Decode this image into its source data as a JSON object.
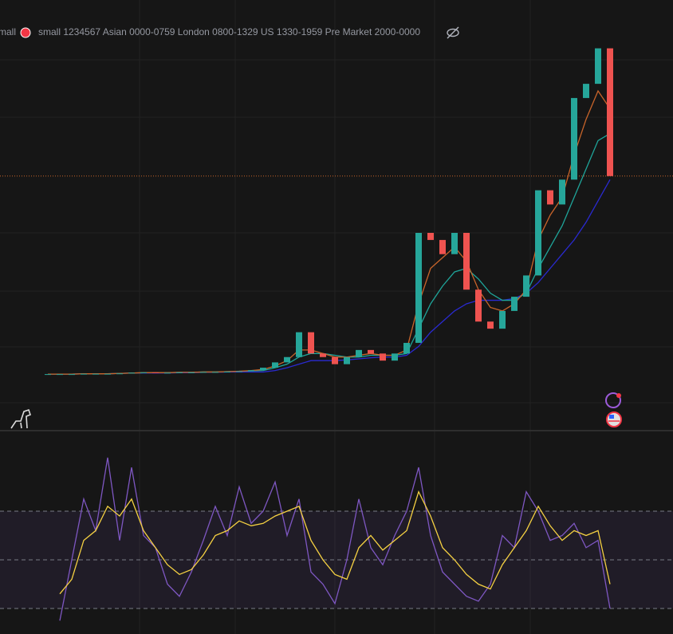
{
  "header": {
    "prefix": "mall",
    "legend": "small 1234567 Asian 0000-0759 London 0800-1329 US 1330-1959 Pre Market 2000-0000"
  },
  "chart_data": [
    {
      "type": "candle-line",
      "ylim": [
        0,
        100
      ],
      "series": [
        {
          "color": "#26a69a",
          "down_color": "#ef5350",
          "values": [
            0.2,
            0.2,
            0.2,
            0.3,
            0.3,
            0.3,
            0.4,
            0.6,
            0.7,
            0.6,
            0.6,
            0.7,
            0.7,
            0.8,
            0.8,
            0.9,
            1,
            1.3,
            2,
            3.5,
            5,
            12,
            6,
            5,
            3,
            5,
            7,
            6,
            4,
            6,
            9,
            40,
            38,
            34,
            40,
            24,
            15,
            13,
            18,
            22,
            28,
            52,
            48,
            55,
            78,
            82,
            92,
            56
          ]
        },
        {
          "color": "#c8642a",
          "values": [
            0.2,
            0.2,
            0.2,
            0.3,
            0.3,
            0.3,
            0.4,
            0.5,
            0.6,
            0.6,
            0.6,
            0.7,
            0.7,
            0.8,
            0.8,
            0.9,
            1,
            1.2,
            1.5,
            2.5,
            4,
            7,
            7,
            6,
            5,
            5,
            5.5,
            6,
            5.5,
            5.5,
            7,
            20,
            30,
            33,
            36,
            32,
            24,
            19,
            18,
            20,
            24,
            38,
            45,
            50,
            62,
            72,
            80,
            75
          ]
        },
        {
          "color": "#1fa59a",
          "values": [
            0.2,
            0.2,
            0.2,
            0.3,
            0.3,
            0.3,
            0.4,
            0.5,
            0.6,
            0.6,
            0.6,
            0.7,
            0.7,
            0.8,
            0.8,
            0.9,
            1,
            1.1,
            1.2,
            2,
            3,
            5,
            6,
            6,
            5.5,
            5,
            5,
            5.5,
            5.5,
            5.5,
            6,
            13,
            20,
            25,
            29,
            30,
            27,
            23,
            21,
            21,
            23,
            30,
            36,
            42,
            50,
            58,
            66,
            68
          ]
        },
        {
          "color": "#2a2ad0",
          "values": [
            0.2,
            0.2,
            0.2,
            0.3,
            0.3,
            0.3,
            0.4,
            0.5,
            0.5,
            0.5,
            0.5,
            0.6,
            0.6,
            0.7,
            0.7,
            0.8,
            0.8,
            0.8,
            0.8,
            1.2,
            2,
            3,
            4,
            4,
            4,
            4.2,
            4.5,
            4.8,
            5,
            5,
            5.5,
            8,
            12,
            15,
            18,
            20,
            21,
            21,
            21,
            21.5,
            23,
            26,
            30,
            34,
            38,
            43,
            49,
            55
          ]
        }
      ],
      "yticks": [
        56
      ],
      "grid": true
    },
    {
      "type": "rsi",
      "ylim": [
        20,
        100
      ],
      "yticks": [
        30,
        50,
        70
      ],
      "series": [
        {
          "color": "#7e57c2",
          "values": [
            null,
            25,
            50,
            75,
            62,
            92,
            58,
            88,
            60,
            55,
            40,
            35,
            45,
            58,
            72,
            60,
            80,
            65,
            70,
            82,
            60,
            75,
            45,
            40,
            32,
            50,
            75,
            55,
            48,
            60,
            70,
            88,
            60,
            45,
            40,
            35,
            33,
            40,
            60,
            55,
            78,
            70,
            58,
            60,
            65,
            55,
            58,
            30
          ]
        },
        {
          "color": "#f5d142",
          "values": [
            null,
            36,
            42,
            58,
            62,
            72,
            68,
            75,
            62,
            55,
            48,
            44,
            46,
            52,
            60,
            62,
            66,
            64,
            65,
            68,
            70,
            72,
            58,
            50,
            44,
            42,
            55,
            60,
            54,
            58,
            62,
            78,
            68,
            55,
            50,
            44,
            40,
            38,
            48,
            55,
            62,
            72,
            64,
            58,
            62,
            60,
            62,
            40
          ]
        }
      ]
    }
  ]
}
